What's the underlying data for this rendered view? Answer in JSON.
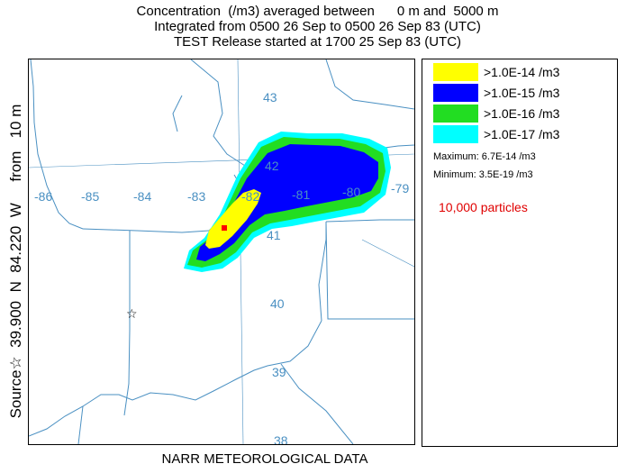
{
  "title": {
    "line1": "Concentration  (/m3) averaged between      0 m and  5000 m",
    "line2": "Integrated from 0500 26 Sep to 0500 26 Sep 83 (UTC)",
    "line3": "TEST Release started at 1700 25 Sep 83 (UTC)"
  },
  "side_label": "Source☆  39.900  N  84.220  W     from   10 m",
  "footer": "NARR METEOROLOGICAL DATA",
  "map": {
    "longitude_labels": [
      "-86",
      "-85",
      "-84",
      "-83",
      "-82",
      "-81",
      "-80",
      "-79"
    ],
    "latitude_labels": [
      "43",
      "42",
      "41",
      "40",
      "39",
      "38"
    ],
    "source_marker": "☆",
    "colors": {
      "border_lines": "#4a90c2",
      "plume_yellow": "#ffff00",
      "plume_blue": "#0000ff",
      "plume_green": "#22dd22",
      "plume_cyan": "#00ffff",
      "max_marker": "#ff0000"
    }
  },
  "legend": {
    "items": [
      {
        "label": ">1.0E-14 /m3",
        "color": "#ffff00"
      },
      {
        "label": ">1.0E-15 /m3",
        "color": "#0000ff"
      },
      {
        "label": ">1.0E-16 /m3",
        "color": "#22dd22"
      },
      {
        "label": ">1.0E-17 /m3",
        "color": "#00ffff"
      }
    ],
    "maximum": "Maximum: 6.7E-14 /m3",
    "minimum": "Minimum: 3.5E-19 /m3",
    "particles": "10,000 particles"
  }
}
